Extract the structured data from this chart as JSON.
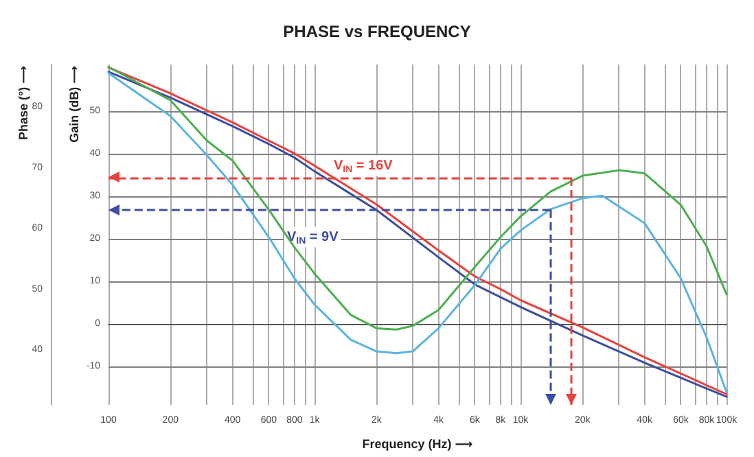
{
  "chart_data": {
    "type": "line",
    "title": "PHASE vs FREQUENCY",
    "xlabel": "Frequency (Hz) ⟶",
    "ylabel": "Gain (dB) ⟶",
    "y2label": "Phase (°) ⟶",
    "log": "x",
    "grid": true,
    "marker": "none",
    "line_style": "solid",
    "xlim": [
      100,
      100000
    ],
    "xticks": [
      100,
      200,
      {
        "value": 300,
        "label": null
      },
      400,
      {
        "value": 500,
        "label": null
      },
      600,
      {
        "value": 700,
        "label": null
      },
      800,
      {
        "value": 900,
        "label": null
      },
      {
        "value": 1000,
        "label": "1k"
      },
      {
        "value": 2000,
        "label": "2k"
      },
      {
        "value": 3000,
        "label": null
      },
      {
        "value": 4000,
        "label": "4k"
      },
      {
        "value": 5000,
        "label": null
      },
      {
        "value": 6000,
        "label": "6k"
      },
      {
        "value": 7000,
        "label": null
      },
      {
        "value": 8000,
        "label": "8k"
      },
      {
        "value": 9000,
        "label": null
      },
      {
        "value": 10000,
        "label": "10k"
      },
      {
        "value": 20000,
        "label": "20k"
      },
      {
        "value": 30000,
        "label": null
      },
      {
        "value": 40000,
        "label": "40k"
      },
      {
        "value": 50000,
        "label": null
      },
      {
        "value": 60000,
        "label": "60k"
      },
      {
        "value": 70000,
        "label": null
      },
      {
        "value": 80000,
        "label": "80k"
      },
      {
        "value": 90000,
        "label": null
      },
      {
        "value": 100000,
        "label": "100k"
      }
    ],
    "ylim": [
      -19,
      61
    ],
    "yticks": [
      -10,
      0,
      10,
      20,
      30,
      40,
      50
    ],
    "y2lim": [
      31,
      87
    ],
    "y2ticks": [
      40,
      50,
      60,
      70,
      80
    ],
    "series": [
      {
        "name": "V$_{IN}$ = 16V",
        "color": "#e8413c",
        "x": [
          100,
          200,
          400,
          600,
          800,
          1000,
          2000,
          4000,
          6000,
          8000,
          10000,
          20000,
          40000,
          100000
        ],
        "values": [
          60.3,
          54.2,
          47.4,
          43.1,
          40.1,
          37.2,
          28.1,
          17.3,
          11.2,
          8.2,
          5.6,
          -0.8,
          -7.8,
          -16.5
        ]
      },
      {
        "name": "V$_{IN}$ = 9V",
        "color": "#3d4ea0",
        "x": [
          100,
          200,
          400,
          600,
          800,
          1000,
          2000,
          4000,
          6000,
          8000,
          10000,
          20000,
          40000,
          100000
        ],
        "values": [
          59.3,
          53.2,
          46.5,
          42.3,
          39.1,
          35.9,
          26.8,
          15.7,
          9.3,
          6.3,
          4.0,
          -2.7,
          -9.1,
          -17.1
        ]
      },
      {
        "color": "#4caf50",
        "axis": "y2",
        "x": [
          100,
          200,
          300,
          400,
          600,
          800,
          1000,
          1500,
          2000,
          2500,
          3000,
          4000,
          6000,
          8000,
          10000,
          14000,
          20000,
          30000,
          40000,
          60000,
          80000,
          100000
        ],
        "values": [
          86.6,
          81.1,
          74.5,
          71.2,
          63.1,
          56.9,
          52.6,
          45.8,
          43.6,
          43.4,
          44.0,
          46.6,
          53.7,
          58.6,
          62.0,
          66.1,
          68.7,
          69.6,
          69.1,
          63.9,
          57.1,
          49.2
        ]
      },
      {
        "color": "#5ab4e0",
        "axis": "y2",
        "x": [
          100,
          200,
          300,
          400,
          600,
          800,
          1000,
          1500,
          2000,
          2500,
          3000,
          4000,
          6000,
          8000,
          10000,
          14000,
          20000,
          25000,
          40000,
          60000,
          80000,
          100000
        ],
        "values": [
          85.6,
          78.5,
          72.1,
          67.2,
          58.6,
          51.8,
          47.5,
          41.7,
          39.8,
          39.5,
          39.8,
          43.6,
          50.7,
          56.7,
          59.7,
          63.2,
          65.0,
          65.4,
          60.9,
          51.8,
          42.1,
          33.1
        ]
      }
    ],
    "ref_lines": [
      {
        "axis": "y2",
        "value": 68.4,
        "color": "#e8413c",
        "line_style": "dashed"
      },
      {
        "axis": "y2",
        "value": 63.1,
        "color": "#3d4ea0",
        "line_style": "dashed"
      },
      {
        "axis": "x",
        "value": 17600,
        "color": "#e8413c",
        "line_style": "dashed"
      },
      {
        "axis": "x",
        "value": 14000,
        "color": "#3d4ea0",
        "line_style": "dashed"
      }
    ]
  }
}
